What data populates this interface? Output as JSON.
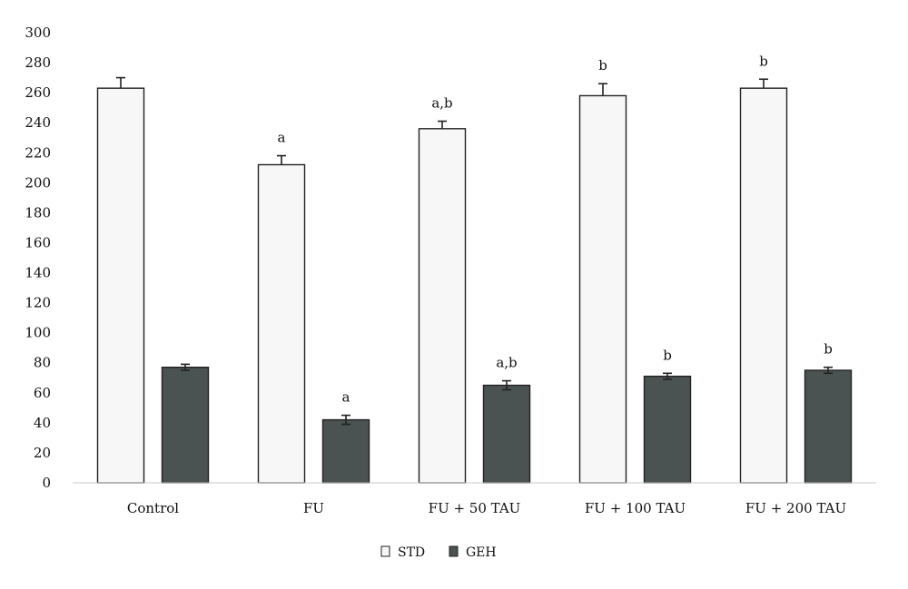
{
  "chart_data": {
    "type": "bar",
    "categories": [
      "Control",
      "FU",
      "FU + 50 TAU",
      "FU + 100 TAU",
      "FU + 200 TAU"
    ],
    "series": [
      {
        "name": "STD",
        "color": "#f7f7f7",
        "values": [
          263,
          212,
          236,
          258,
          263
        ],
        "errors": [
          7,
          6,
          5,
          8,
          6
        ],
        "labels": [
          "",
          "a",
          "a,b",
          "b",
          "b"
        ]
      },
      {
        "name": "GEH",
        "color": "#4a5352",
        "values": [
          77,
          42,
          65,
          71,
          75
        ],
        "errors": [
          2,
          3,
          3,
          2,
          2
        ],
        "labels": [
          "",
          "a",
          "a,b",
          "b",
          "b"
        ]
      }
    ],
    "ylim": [
      0,
      300
    ],
    "yticks": [
      0,
      20,
      40,
      60,
      80,
      100,
      120,
      140,
      160,
      180,
      200,
      220,
      240,
      260,
      280,
      300
    ],
    "legend_position": "bottom-center",
    "grid": false,
    "title": "",
    "xlabel": "",
    "ylabel": ""
  }
}
